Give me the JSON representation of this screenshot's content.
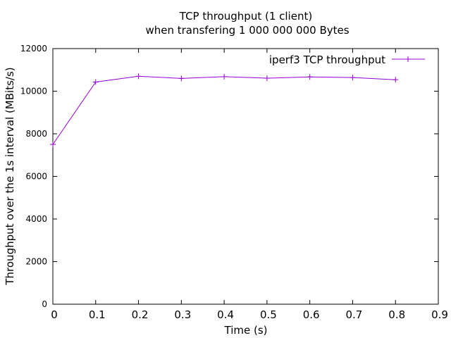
{
  "chart_data": {
    "type": "line",
    "title_line1": "TCP throughput (1 client)",
    "title_line2": "when transfering 1 000 000 000 Bytes",
    "xlabel": "Time (s)",
    "ylabel": "Throughput over the 1s interval (MBits/s)",
    "xlim": [
      0,
      0.9
    ],
    "ylim": [
      0,
      12000
    ],
    "x_ticks": [
      "0",
      "0.1",
      "0.2",
      "0.3",
      "0.4",
      "0.5",
      "0.6",
      "0.7",
      "0.8",
      "0.9"
    ],
    "y_ticks": [
      "0",
      "2000",
      "4000",
      "6000",
      "8000",
      "10000",
      "12000"
    ],
    "grid": false,
    "legend_position": "top-right",
    "series": [
      {
        "name": "iperf3 TCP throughput",
        "color": "#9400d3",
        "marker": "plus",
        "x": [
          0,
          0.1,
          0.2,
          0.3,
          0.4,
          0.5,
          0.6,
          0.7,
          0.8
        ],
        "y": [
          7500,
          10430,
          10700,
          10600,
          10680,
          10610,
          10670,
          10640,
          10540
        ]
      }
    ]
  }
}
